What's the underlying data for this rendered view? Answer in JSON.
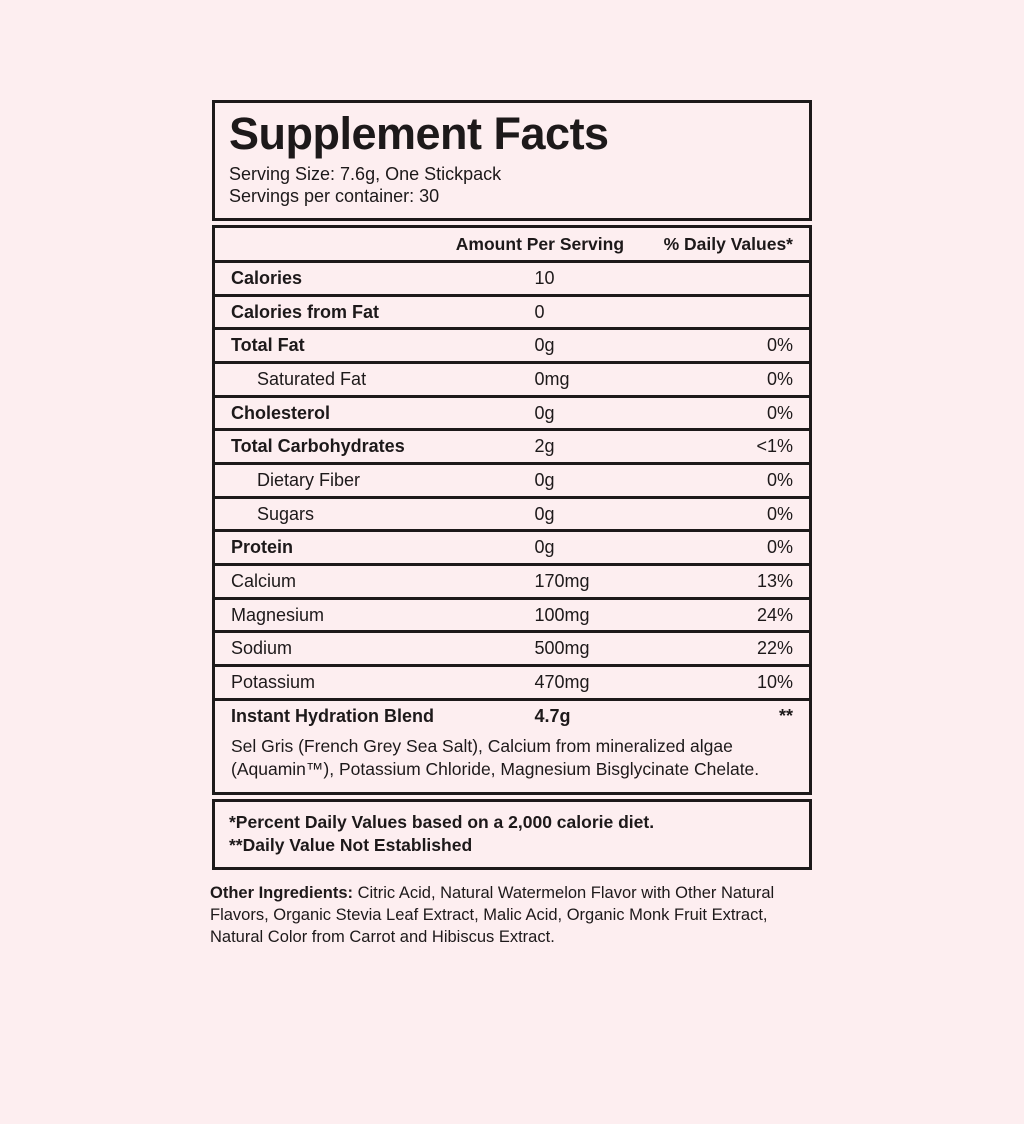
{
  "colors": {
    "background": "#fdeef0",
    "ink": "#1d191a"
  },
  "label": {
    "title": "Supplement Facts",
    "serving_size": "Serving Size: 7.6g, One Stickpack",
    "servings_per_container": "Servings per container: 30",
    "columns": {
      "amount": "Amount Per Serving",
      "dv": "% Daily Values*"
    },
    "rows": [
      {
        "name": "Calories",
        "amount": "10",
        "dv": "",
        "bold": true,
        "indent": false
      },
      {
        "name": "Calories from Fat",
        "amount": "0",
        "dv": "",
        "bold": true,
        "indent": false
      },
      {
        "name": "Total Fat",
        "amount": "0g",
        "dv": "0%",
        "bold": true,
        "indent": false
      },
      {
        "name": "Saturated Fat",
        "amount": "0mg",
        "dv": "0%",
        "bold": false,
        "indent": true
      },
      {
        "name": "Cholesterol",
        "amount": "0g",
        "dv": "0%",
        "bold": true,
        "indent": false
      },
      {
        "name": "Total Carbohydrates",
        "amount": "2g",
        "dv": "<1%",
        "bold": true,
        "indent": false
      },
      {
        "name": "Dietary Fiber",
        "amount": "0g",
        "dv": "0%",
        "bold": false,
        "indent": true
      },
      {
        "name": "Sugars",
        "amount": "0g",
        "dv": "0%",
        "bold": false,
        "indent": true
      },
      {
        "name": "Protein",
        "amount": "0g",
        "dv": "0%",
        "bold": true,
        "indent": false
      },
      {
        "name": "Calcium",
        "amount": "170mg",
        "dv": "13%",
        "bold": false,
        "indent": false
      },
      {
        "name": "Magnesium",
        "amount": "100mg",
        "dv": "24%",
        "bold": false,
        "indent": false
      },
      {
        "name": "Sodium",
        "amount": "500mg",
        "dv": "22%",
        "bold": false,
        "indent": false
      },
      {
        "name": "Potassium",
        "amount": "470mg",
        "dv": "10%",
        "bold": false,
        "indent": false
      }
    ],
    "blend": {
      "name": "Instant Hydration Blend",
      "amount": "4.7g",
      "dv": "**",
      "description": "Sel Gris (French Grey Sea Salt), Calcium from mineralized algae (Aquamin™), Potassium Chloride, Magnesium Bisglycinate Chelate."
    },
    "footnotes": [
      "*Percent Daily Values based on a 2,000 calorie diet.",
      "**Daily Value Not Established"
    ],
    "other_ingredients_label": "Other Ingredients:",
    "other_ingredients_text": " Citric Acid, Natural Watermelon Flavor with Other Natural Flavors, Organic Stevia Leaf Extract, Malic Acid, Organic Monk Fruit Extract, Natural Color from Carrot and Hibiscus Extract."
  }
}
